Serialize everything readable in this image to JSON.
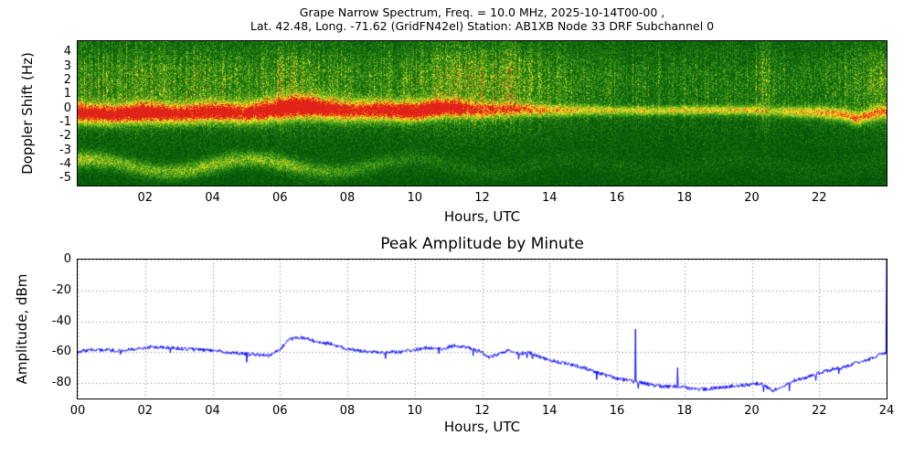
{
  "chart_data": [
    {
      "type": "heatmap",
      "title_line1": "Grape Narrow Spectrum, Freq. = 10.0 MHz, 2025-10-14T00-00 ,",
      "title_line2": "Lat.  42.48, Long. -71.62 (GridFN42el) Station: AB1XB Node 33 DRF Subchannel 0",
      "xlabel": "Hours, UTC",
      "ylabel": "Doppler Shift (Hz)",
      "xlim": [
        0,
        24
      ],
      "ylim": [
        -5.5,
        4.8
      ],
      "xticks": [
        {
          "v": 2,
          "label": "02"
        },
        {
          "v": 4,
          "label": "04"
        },
        {
          "v": 6,
          "label": "06"
        },
        {
          "v": 8,
          "label": "08"
        },
        {
          "v": 10,
          "label": "10"
        },
        {
          "v": 12,
          "label": "12"
        },
        {
          "v": 14,
          "label": "14"
        },
        {
          "v": 16,
          "label": "16"
        },
        {
          "v": 18,
          "label": "18"
        },
        {
          "v": 20,
          "label": "20"
        },
        {
          "v": 22,
          "label": "22"
        }
      ],
      "yticks": [
        {
          "v": 4,
          "label": "4"
        },
        {
          "v": 3,
          "label": "3"
        },
        {
          "v": 2,
          "label": "2"
        },
        {
          "v": 1,
          "label": "1"
        },
        {
          "v": 0,
          "label": "0"
        },
        {
          "v": -1,
          "label": "-1"
        },
        {
          "v": -2,
          "label": "-2"
        },
        {
          "v": -3,
          "label": "-3"
        },
        {
          "v": -4,
          "label": "-4"
        },
        {
          "v": -5,
          "label": "-5"
        }
      ],
      "seed": 20251014,
      "colormap_stops": [
        [
          0.0,
          [
            0,
            56,
            0
          ]
        ],
        [
          0.25,
          [
            10,
            96,
            10
          ]
        ],
        [
          0.45,
          [
            56,
            148,
            24
          ]
        ],
        [
          0.62,
          [
            140,
            192,
            30
          ]
        ],
        [
          0.74,
          [
            214,
            222,
            40
          ]
        ],
        [
          0.84,
          [
            255,
            228,
            32
          ]
        ],
        [
          0.91,
          [
            255,
            148,
            24
          ]
        ],
        [
          1.0,
          [
            224,
            34,
            24
          ]
        ]
      ],
      "main_band": {
        "center_hz_keypoints": [
          [
            0,
            -0.3
          ],
          [
            1,
            -0.4
          ],
          [
            2,
            -0.25
          ],
          [
            3,
            -0.35
          ],
          [
            4,
            -0.2
          ],
          [
            5,
            -0.3
          ],
          [
            6,
            0.0
          ],
          [
            6.5,
            0.15
          ],
          [
            7,
            0.1
          ],
          [
            8,
            -0.15
          ],
          [
            9,
            -0.1
          ],
          [
            10,
            -0.2
          ],
          [
            10.5,
            0.0
          ],
          [
            11,
            0.1
          ],
          [
            12,
            -0.1
          ],
          [
            13,
            0.0
          ],
          [
            14,
            -0.1
          ],
          [
            15,
            -0.1
          ],
          [
            16,
            -0.12
          ],
          [
            17,
            -0.15
          ],
          [
            18,
            -0.1
          ],
          [
            19,
            -0.1
          ],
          [
            20,
            -0.1
          ],
          [
            21,
            -0.2
          ],
          [
            22,
            -0.25
          ],
          [
            22.8,
            -0.45
          ],
          [
            23.1,
            -0.7
          ],
          [
            23.5,
            -0.45
          ],
          [
            23.8,
            -0.2
          ],
          [
            24,
            -0.3
          ]
        ],
        "width_hz_keypoints": [
          [
            0,
            0.5
          ],
          [
            4,
            0.5
          ],
          [
            6,
            0.55
          ],
          [
            10,
            0.5
          ],
          [
            12,
            0.4
          ],
          [
            14,
            0.3
          ],
          [
            16,
            0.24
          ],
          [
            20,
            0.24
          ],
          [
            22,
            0.3
          ],
          [
            24,
            0.35
          ]
        ],
        "strength_keypoints": [
          [
            0,
            0.95
          ],
          [
            1,
            0.9
          ],
          [
            2,
            1.0
          ],
          [
            3,
            0.85
          ],
          [
            4,
            0.9
          ],
          [
            5,
            0.85
          ],
          [
            6,
            1.0
          ],
          [
            7,
            1.0
          ],
          [
            8,
            0.8
          ],
          [
            9,
            0.85
          ],
          [
            10,
            0.95
          ],
          [
            11,
            0.9
          ],
          [
            11.5,
            0.75
          ],
          [
            12,
            0.65
          ],
          [
            13,
            0.6
          ],
          [
            14,
            0.5
          ],
          [
            15,
            0.45
          ],
          [
            16,
            0.42
          ],
          [
            17,
            0.42
          ],
          [
            18,
            0.45
          ],
          [
            19,
            0.45
          ],
          [
            20,
            0.5
          ],
          [
            20.5,
            0.28
          ],
          [
            21,
            0.5
          ],
          [
            22,
            0.55
          ],
          [
            23,
            0.65
          ],
          [
            24,
            0.6
          ]
        ]
      },
      "lower_band": {
        "center_hz": -4.05,
        "wave_amplitude_hz": 0.45,
        "strength_keypoints": [
          [
            0,
            0.55
          ],
          [
            1,
            0.45
          ],
          [
            2,
            0.4
          ],
          [
            3,
            0.45
          ],
          [
            4,
            0.5
          ],
          [
            5,
            0.45
          ],
          [
            6,
            0.5
          ],
          [
            7,
            0.35
          ],
          [
            8,
            0.28
          ],
          [
            9,
            0.22
          ],
          [
            10,
            0.16
          ],
          [
            11,
            0.12
          ],
          [
            12,
            0.1
          ],
          [
            14,
            0.07
          ],
          [
            24,
            0.05
          ]
        ]
      },
      "background_activity_keypoints": [
        [
          0,
          0.5
        ],
        [
          0.5,
          0.55
        ],
        [
          1,
          0.55
        ],
        [
          2,
          0.62
        ],
        [
          2.5,
          0.58
        ],
        [
          3,
          0.55
        ],
        [
          4,
          0.6
        ],
        [
          5,
          0.5
        ],
        [
          5.8,
          0.6
        ],
        [
          6.3,
          0.8
        ],
        [
          6.8,
          0.7
        ],
        [
          7.5,
          0.5
        ],
        [
          8.5,
          0.45
        ],
        [
          9.5,
          0.5
        ],
        [
          10.3,
          0.6
        ],
        [
          10.8,
          0.8
        ],
        [
          11.5,
          0.85
        ],
        [
          12.2,
          0.78
        ],
        [
          12.8,
          0.85
        ],
        [
          13.3,
          0.7
        ],
        [
          14,
          0.5
        ],
        [
          15,
          0.4
        ],
        [
          16,
          0.33
        ],
        [
          17,
          0.3
        ],
        [
          18,
          0.3
        ],
        [
          19,
          0.3
        ],
        [
          20,
          0.33
        ],
        [
          20.4,
          0.72
        ],
        [
          20.7,
          0.33
        ],
        [
          21.5,
          0.33
        ],
        [
          22.5,
          0.35
        ],
        [
          23.2,
          0.5
        ],
        [
          23.8,
          0.72
        ],
        [
          24,
          0.6
        ]
      ]
    },
    {
      "type": "line",
      "title": "Peak Amplitude by Minute",
      "xlabel": "Hours, UTC",
      "ylabel": "Amplitude, dBm",
      "xlim": [
        0,
        24
      ],
      "ylim": [
        -90,
        0
      ],
      "xticks": [
        {
          "v": 0,
          "label": "00"
        },
        {
          "v": 2,
          "label": "02"
        },
        {
          "v": 4,
          "label": "04"
        },
        {
          "v": 6,
          "label": "06"
        },
        {
          "v": 8,
          "label": "08"
        },
        {
          "v": 10,
          "label": "10"
        },
        {
          "v": 12,
          "label": "12"
        },
        {
          "v": 14,
          "label": "14"
        },
        {
          "v": 16,
          "label": "16"
        },
        {
          "v": 18,
          "label": "18"
        },
        {
          "v": 20,
          "label": "20"
        },
        {
          "v": 22,
          "label": "22"
        },
        {
          "v": 24,
          "label": "24"
        }
      ],
      "yticks": [
        {
          "v": 0,
          "label": "0"
        },
        {
          "v": -20,
          "label": "-20"
        },
        {
          "v": -40,
          "label": "-40"
        },
        {
          "v": -60,
          "label": "-60"
        },
        {
          "v": -80,
          "label": "-80"
        }
      ],
      "line_color": "#0000ff",
      "grid_color": "#777777",
      "grid_style": "dotted",
      "noise_db": 2.4,
      "amplitude_dbm_keypoints": [
        [
          0,
          -60
        ],
        [
          0.3,
          -58.5
        ],
        [
          0.8,
          -58.5
        ],
        [
          1.2,
          -59
        ],
        [
          1.7,
          -58
        ],
        [
          2.2,
          -56.5
        ],
        [
          2.7,
          -57
        ],
        [
          3.2,
          -58
        ],
        [
          3.7,
          -58.5
        ],
        [
          4.2,
          -59.5
        ],
        [
          4.7,
          -60.5
        ],
        [
          5.2,
          -61.5
        ],
        [
          5.7,
          -62
        ],
        [
          6.0,
          -58
        ],
        [
          6.3,
          -51.5
        ],
        [
          6.6,
          -50.5
        ],
        [
          6.9,
          -52
        ],
        [
          7.2,
          -53.5
        ],
        [
          7.6,
          -55
        ],
        [
          8.0,
          -58
        ],
        [
          8.5,
          -59.5
        ],
        [
          9.0,
          -60
        ],
        [
          9.5,
          -60
        ],
        [
          10.0,
          -58.5
        ],
        [
          10.4,
          -57
        ],
        [
          10.8,
          -58
        ],
        [
          11.1,
          -56
        ],
        [
          11.5,
          -56.5
        ],
        [
          12.0,
          -60
        ],
        [
          12.2,
          -63.5
        ],
        [
          12.5,
          -61
        ],
        [
          12.8,
          -58.5
        ],
        [
          13.1,
          -61
        ],
        [
          13.4,
          -60
        ],
        [
          13.7,
          -63
        ],
        [
          14.0,
          -65
        ],
        [
          14.5,
          -67.5
        ],
        [
          15.0,
          -70
        ],
        [
          15.5,
          -74
        ],
        [
          16.0,
          -77
        ],
        [
          16.4,
          -78.5
        ],
        [
          17.0,
          -81
        ],
        [
          17.4,
          -82.5
        ],
        [
          17.8,
          -82
        ],
        [
          18.2,
          -83.5
        ],
        [
          18.6,
          -84
        ],
        [
          19.0,
          -83
        ],
        [
          19.4,
          -82
        ],
        [
          20.0,
          -81
        ],
        [
          20.3,
          -80
        ],
        [
          20.6,
          -85
        ],
        [
          20.9,
          -82.5
        ],
        [
          21.2,
          -78.5
        ],
        [
          21.6,
          -76.5
        ],
        [
          22.0,
          -73.5
        ],
        [
          22.4,
          -71
        ],
        [
          22.8,
          -69.5
        ],
        [
          23.1,
          -67
        ],
        [
          23.5,
          -64.5
        ],
        [
          23.8,
          -61.5
        ],
        [
          24,
          -60
        ]
      ],
      "spikes": [
        {
          "t": 16.55,
          "value": -45
        },
        {
          "t": 17.8,
          "value": -70
        },
        {
          "t": 24,
          "value": 0
        }
      ]
    }
  ]
}
